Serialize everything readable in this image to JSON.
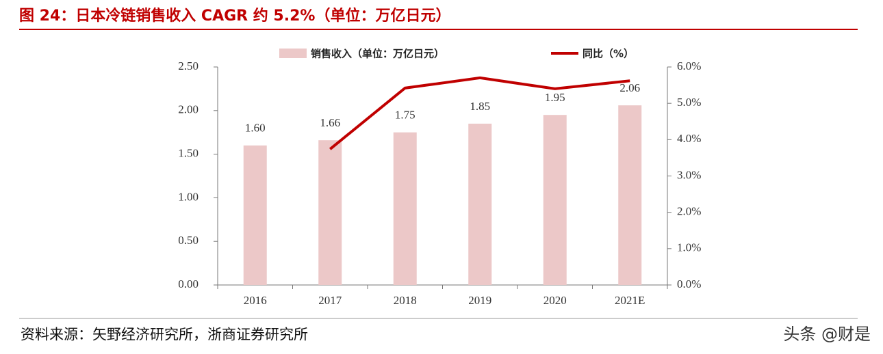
{
  "chart_data": {
    "type": "bar_line",
    "title": "图 24：日本冷链销售收入 CAGR 约 5.2%（单位：万亿日元）",
    "categories": [
      "2016",
      "2017",
      "2018",
      "2019",
      "2020",
      "2021E"
    ],
    "series": [
      {
        "name": "销售收入（单位：万亿日元）",
        "type": "bar",
        "color": "#ecc8c8",
        "axis": "y",
        "values": [
          1.6,
          1.66,
          1.75,
          1.85,
          1.95,
          2.06
        ],
        "value_labels": [
          "1.60",
          "1.66",
          "1.75",
          "1.85",
          "1.95",
          "2.06"
        ]
      },
      {
        "name": "同比（%）",
        "type": "line",
        "color": "#c00000",
        "axis": "y2",
        "values": [
          null,
          3.74,
          5.42,
          5.7,
          5.4,
          5.62
        ]
      }
    ],
    "ylim": [
      0,
      2.5
    ],
    "yticks": [
      {
        "value": 0,
        "label": "0.00"
      },
      {
        "value": 0.5,
        "label": "0.50"
      },
      {
        "value": 1,
        "label": "1.00"
      },
      {
        "value": 1.5,
        "label": "1.50"
      },
      {
        "value": 2,
        "label": "2.00"
      },
      {
        "value": 2.5,
        "label": "2.50"
      }
    ],
    "y2lim": [
      0,
      6
    ],
    "y2ticks": [
      {
        "value": 0,
        "label": "0.0%"
      },
      {
        "value": 1,
        "label": "1.0%"
      },
      {
        "value": 2,
        "label": "2.0%"
      },
      {
        "value": 3,
        "label": "3.0%"
      },
      {
        "value": 4,
        "label": "4.0%"
      },
      {
        "value": 5,
        "label": "5.0%"
      },
      {
        "value": 6,
        "label": "6.0%"
      }
    ],
    "grid": false,
    "legend": "top"
  },
  "source": "资料来源：矢野经济研究所，浙商证券研究所",
  "watermark": "头条 @财是"
}
